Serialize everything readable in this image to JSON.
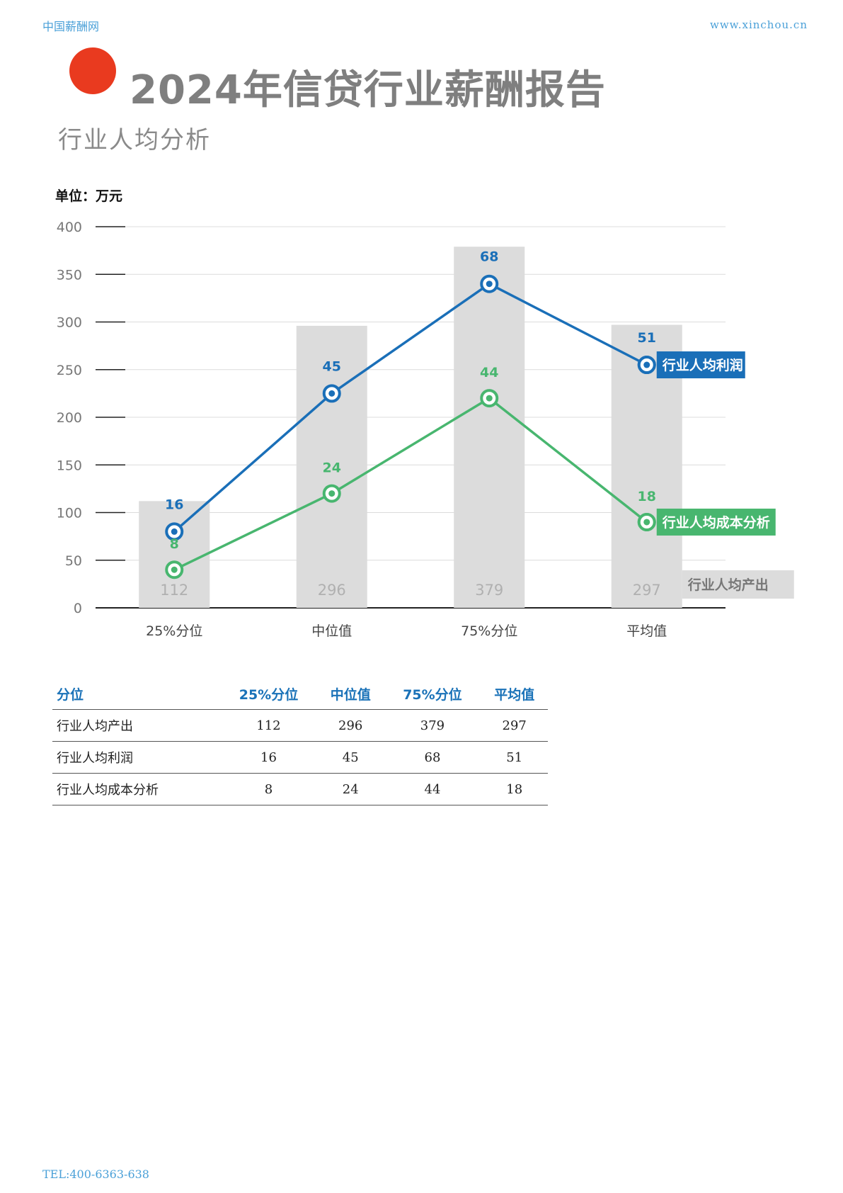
{
  "header": {
    "left": "中国薪酬网",
    "right": "www.xinchou.cn"
  },
  "title": "2024年信贷行业薪酬报告",
  "subtitle": "行业人均分析",
  "unit": "单位：万元",
  "colors": {
    "bar": "#dcdcdc",
    "profit": "#1a6fb8",
    "cost": "#48b66f",
    "accent_dot": "#e93a1f"
  },
  "chart_data": {
    "type": "bar",
    "categories": [
      "25%分位",
      "中位值",
      "75%分位",
      "平均值"
    ],
    "ylim": [
      0,
      400
    ],
    "yticks": [
      0,
      50,
      100,
      150,
      200,
      250,
      300,
      350,
      400
    ],
    "series": [
      {
        "name": "行业人均产出",
        "type": "bar",
        "values": [
          112,
          296,
          379,
          297
        ],
        "labels": [
          "112",
          "296",
          "379",
          "297"
        ]
      },
      {
        "name": "行业人均利润",
        "type": "line",
        "values": [
          80,
          225,
          340,
          255
        ],
        "labels": [
          "16",
          "45",
          "68",
          "51"
        ]
      },
      {
        "name": "行业人均成本分析",
        "type": "line",
        "values": [
          40,
          120,
          220,
          90
        ],
        "labels": [
          "8",
          "24",
          "44",
          "18"
        ]
      }
    ]
  },
  "table": {
    "headers": [
      "分位",
      "25%分位",
      "中位值",
      "75%分位",
      "平均值"
    ],
    "rows": [
      {
        "label": "行业人均产出",
        "values": [
          "112",
          "296",
          "379",
          "297"
        ]
      },
      {
        "label": "行业人均利润",
        "values": [
          "16",
          "45",
          "68",
          "51"
        ]
      },
      {
        "label": "行业人均成本分析",
        "values": [
          "8",
          "24",
          "44",
          "18"
        ]
      }
    ]
  },
  "footer": "TEL:400-6363-638"
}
